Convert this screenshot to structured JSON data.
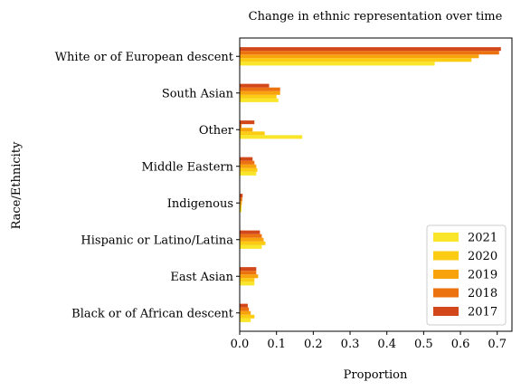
{
  "chart_data": {
    "type": "bar",
    "orientation": "horizontal",
    "title": "Change in ethnic representation over time",
    "xlabel": "Proportion",
    "ylabel": "Race/Ethnicity",
    "xlim": [
      0,
      0.74
    ],
    "xticks": [
      "0.0",
      "0.1",
      "0.2",
      "0.3",
      "0.4",
      "0.5",
      "0.6",
      "0.7"
    ],
    "grid": false,
    "legend_position": "bottom-right",
    "categories": [
      "Black or of African descent",
      "East Asian",
      "Hispanic or Latino/Latina",
      "Indigenous",
      "Middle Eastern",
      "Other",
      "South Asian",
      "White or of European descent"
    ],
    "series": [
      {
        "name": "2021",
        "color": "#f9e52a",
        "values": [
          0.03,
          0.04,
          0.06,
          0.005,
          0.045,
          0.17,
          0.105,
          0.53
        ]
      },
      {
        "name": "2020",
        "color": "#fbcc12",
        "values": [
          0.04,
          0.04,
          0.07,
          0.005,
          0.048,
          0.068,
          0.1,
          0.63
        ]
      },
      {
        "name": "2019",
        "color": "#f8a20c",
        "values": [
          0.03,
          0.05,
          0.065,
          0.006,
          0.045,
          0.035,
          0.11,
          0.65
        ]
      },
      {
        "name": "2018",
        "color": "#ec720f",
        "values": [
          0.025,
          0.045,
          0.06,
          0.007,
          0.04,
          0.005,
          0.11,
          0.705
        ]
      },
      {
        "name": "2017",
        "color": "#d2481a",
        "values": [
          0.022,
          0.045,
          0.055,
          0.008,
          0.035,
          0.04,
          0.08,
          0.71
        ]
      }
    ]
  }
}
